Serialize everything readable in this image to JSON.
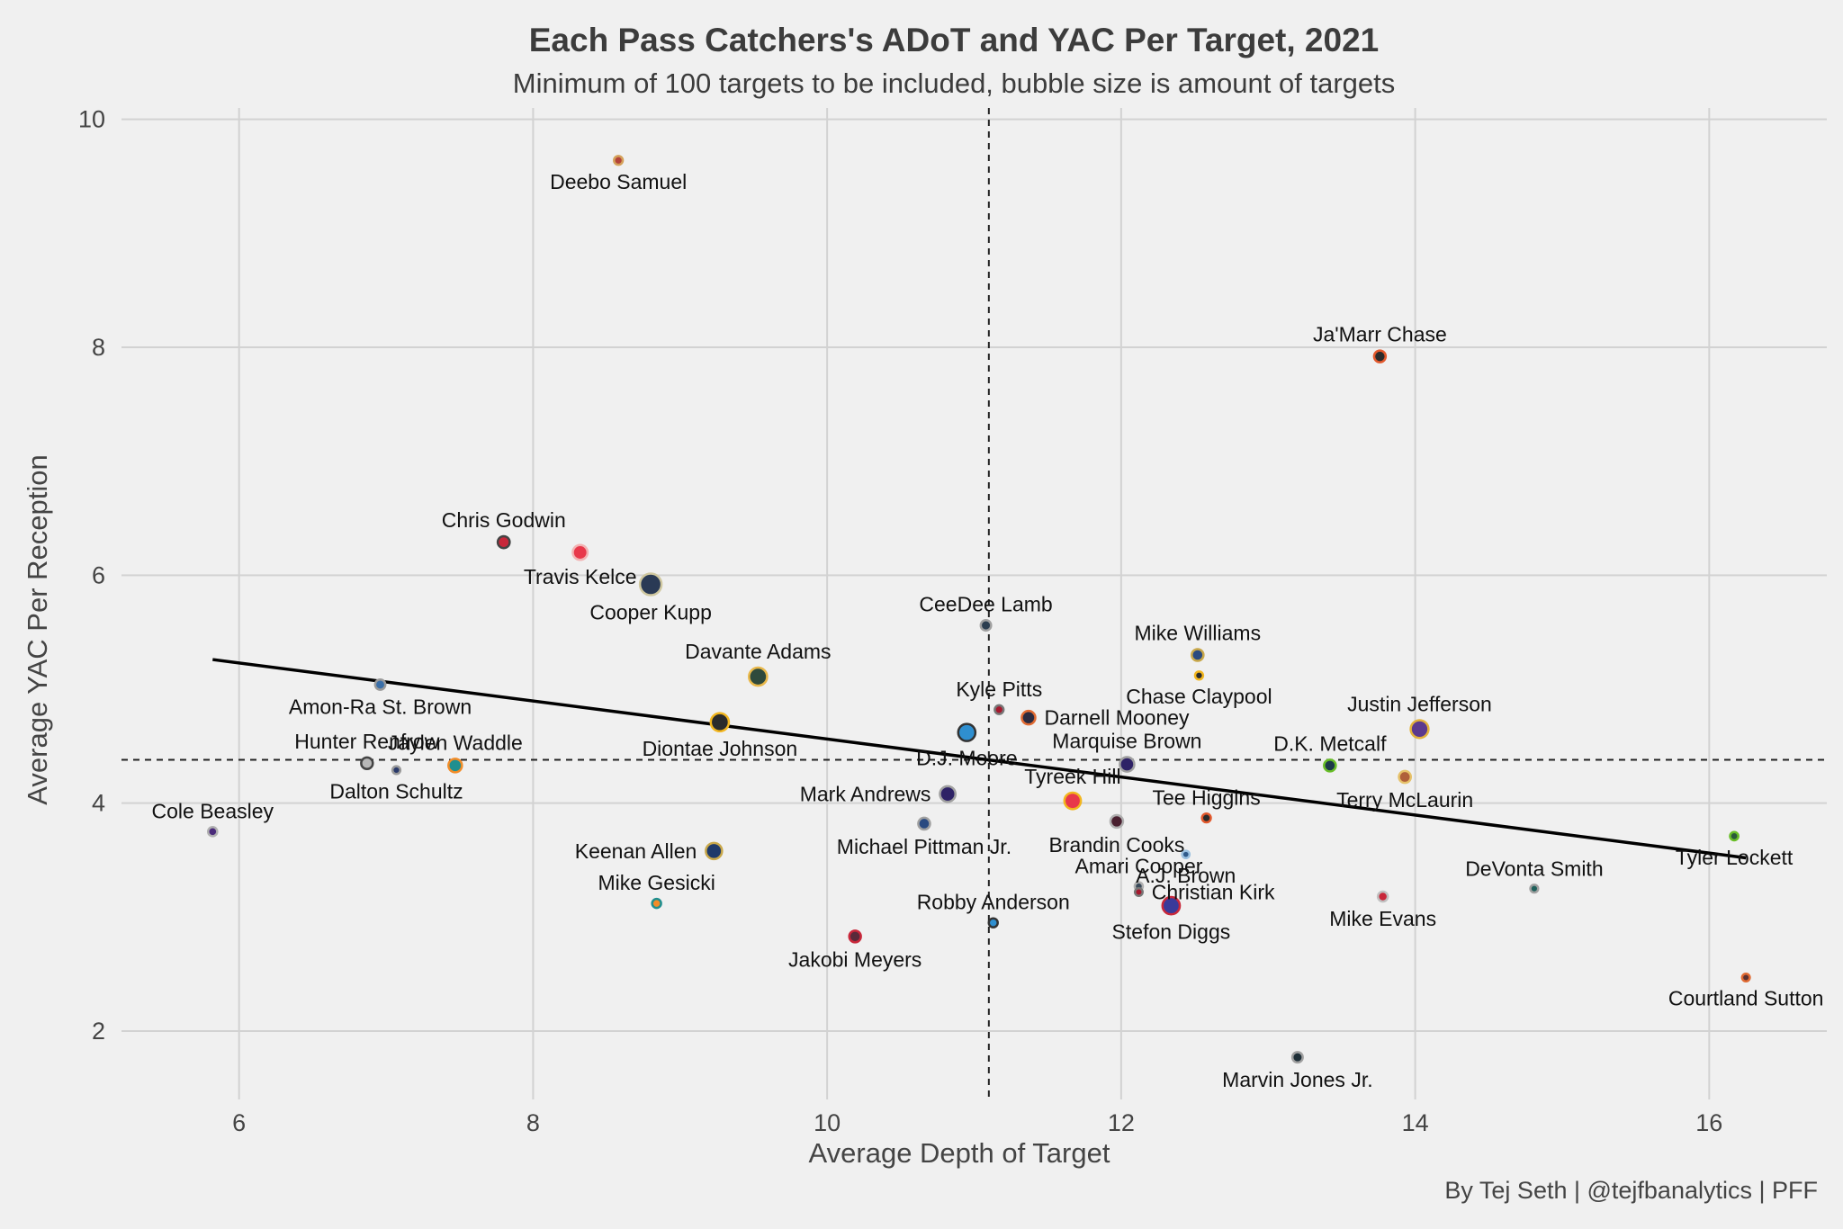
{
  "chart_data": {
    "type": "scatter",
    "title": "Each Pass Catchers's ADoT and YAC Per Target, 2021",
    "subtitle": "Minimum of 100 targets to be included, bubble size is amount of targets",
    "xlabel": "Average Depth of Target",
    "ylabel": "Average YAC Per Reception",
    "xlim": [
      5.2,
      16.8
    ],
    "ylim": [
      1.4,
      10.1
    ],
    "xticks": [
      6,
      8,
      10,
      12,
      14,
      16
    ],
    "yticks": [
      2,
      4,
      6,
      8,
      10
    ],
    "grid": true,
    "reference_lines": {
      "x_mean": 11.1,
      "y_mean": 4.38
    },
    "trend_line": {
      "x": [
        5.82,
        16.25
      ],
      "y": [
        5.26,
        3.52
      ]
    },
    "credit": "By Tej Seth | @tejfbanalytics | PFF",
    "points": [
      {
        "name": "Deebo Samuel",
        "x": 8.58,
        "y": 9.64,
        "targets": 110,
        "fill": "#b3433a",
        "edge": "#d4a15a",
        "label_pos": "below"
      },
      {
        "name": "Ja'Marr Chase",
        "x": 13.76,
        "y": 7.92,
        "targets": 128,
        "fill": "#2b2b2b",
        "edge": "#e2592d",
        "label_pos": "above"
      },
      {
        "name": "Chris Godwin",
        "x": 7.8,
        "y": 6.29,
        "targets": 130,
        "fill": "#c8273a",
        "edge": "#444444",
        "label_pos": "above"
      },
      {
        "name": "Travis Kelce",
        "x": 8.32,
        "y": 6.2,
        "targets": 148,
        "fill": "#e8384a",
        "edge": "#f2b3b3",
        "label_pos": "below"
      },
      {
        "name": "Cooper Kupp",
        "x": 8.8,
        "y": 5.92,
        "targets": 191,
        "fill": "#2a3a55",
        "edge": "#d0c8a0",
        "label_pos": "below"
      },
      {
        "name": "CeeDee Lamb",
        "x": 11.08,
        "y": 5.56,
        "targets": 120,
        "fill": "#2c3e50",
        "edge": "#a0a0a0",
        "label_pos": "above"
      },
      {
        "name": "Mike Williams",
        "x": 12.52,
        "y": 5.3,
        "targets": 129,
        "fill": "#2a4a80",
        "edge": "#c9a84a",
        "label_pos": "above"
      },
      {
        "name": "Chase Claypool",
        "x": 12.53,
        "y": 5.12,
        "targets": 105,
        "fill": "#2b2b2b",
        "edge": "#f2b61f",
        "label_pos": "below"
      },
      {
        "name": "Davante Adams",
        "x": 9.53,
        "y": 5.11,
        "targets": 169,
        "fill": "#2f4a3c",
        "edge": "#e9b84a",
        "label_pos": "above"
      },
      {
        "name": "Amon-Ra St. Brown",
        "x": 6.96,
        "y": 5.04,
        "targets": 119,
        "fill": "#3b6fa8",
        "edge": "#9a9a9a",
        "label_pos": "below"
      },
      {
        "name": "Kyle Pitts",
        "x": 11.17,
        "y": 4.82,
        "targets": 110,
        "fill": "#a6192e",
        "edge": "#777777",
        "label_pos": "above"
      },
      {
        "name": "Darnell Mooney",
        "x": 11.37,
        "y": 4.75,
        "targets": 140,
        "fill": "#2b2b40",
        "edge": "#e06a32",
        "label_pos": "right"
      },
      {
        "name": "Diontae Johnson",
        "x": 9.27,
        "y": 4.71,
        "targets": 169,
        "fill": "#2b2b2b",
        "edge": "#f2b61f",
        "label_pos": "below"
      },
      {
        "name": "Justin Jefferson",
        "x": 14.03,
        "y": 4.65,
        "targets": 167,
        "fill": "#5c3a8e",
        "edge": "#e3b23c",
        "label_pos": "above"
      },
      {
        "name": "D.J. Moore",
        "x": 10.95,
        "y": 4.62,
        "targets": 163,
        "fill": "#2f8fd0",
        "edge": "#333333",
        "label_pos": "below"
      },
      {
        "name": "Hunter Renfrow",
        "x": 6.87,
        "y": 4.35,
        "targets": 128,
        "fill": "#b8b8b8",
        "edge": "#444444",
        "label_pos": "above"
      },
      {
        "name": "Jaylen Waddle",
        "x": 7.47,
        "y": 4.33,
        "targets": 140,
        "fill": "#1f8f8f",
        "edge": "#f28c28",
        "label_pos": "above"
      },
      {
        "name": "Marquise Brown",
        "x": 12.04,
        "y": 4.34,
        "targets": 146,
        "fill": "#2e2266",
        "edge": "#a0a0a0",
        "label_pos": "above"
      },
      {
        "name": "D.K. Metcalf",
        "x": 13.42,
        "y": 4.33,
        "targets": 129,
        "fill": "#1d3a4a",
        "edge": "#69be28",
        "label_pos": "above"
      },
      {
        "name": "Dalton Schultz",
        "x": 7.07,
        "y": 4.29,
        "targets": 104,
        "fill": "#2a3a6a",
        "edge": "#9a9a9a",
        "label_pos": "below"
      },
      {
        "name": "Terry McLaurin",
        "x": 13.93,
        "y": 4.23,
        "targets": 130,
        "fill": "#b0603a",
        "edge": "#e6c26a",
        "label_pos": "below"
      },
      {
        "name": "Mark Andrews",
        "x": 10.82,
        "y": 4.08,
        "targets": 153,
        "fill": "#2e2266",
        "edge": "#a0a0a0",
        "label_pos": "left"
      },
      {
        "name": "Tyreek Hill",
        "x": 11.67,
        "y": 4.02,
        "targets": 159,
        "fill": "#e8384a",
        "edge": "#f2b61f",
        "label_pos": "above"
      },
      {
        "name": "Tee Higgins",
        "x": 12.58,
        "y": 3.87,
        "targets": 110,
        "fill": "#2b2b2b",
        "edge": "#e2592d",
        "label_pos": "above"
      },
      {
        "name": "Brandin Cooks",
        "x": 11.97,
        "y": 3.84,
        "targets": 134,
        "fill": "#4a2030",
        "edge": "#b0b0b0",
        "label_pos": "below"
      },
      {
        "name": "Michael Pittman Jr.",
        "x": 10.66,
        "y": 3.82,
        "targets": 129,
        "fill": "#2a4a80",
        "edge": "#a0a0a0",
        "label_pos": "below"
      },
      {
        "name": "Cole Beasley",
        "x": 5.82,
        "y": 3.75,
        "targets": 112,
        "fill": "#4a2a7a",
        "edge": "#b0b0b0",
        "label_pos": "above"
      },
      {
        "name": "Tyler Lockett",
        "x": 16.17,
        "y": 3.71,
        "targets": 107,
        "fill": "#2a5a3a",
        "edge": "#69be28",
        "label_pos": "below"
      },
      {
        "name": "Keenan Allen",
        "x": 9.23,
        "y": 3.58,
        "targets": 157,
        "fill": "#1f3a6a",
        "edge": "#c9a84a",
        "label_pos": "left"
      },
      {
        "name": "A.J. Brown",
        "x": 12.44,
        "y": 3.55,
        "targets": 101,
        "fill": "#2f5a8a",
        "edge": "#9ac0e0",
        "label_pos": "below"
      },
      {
        "name": "Amari Cooper",
        "x": 12.12,
        "y": 3.27,
        "targets": 106,
        "fill": "#3a4a5a",
        "edge": "#b0b0b0",
        "label_pos": "above"
      },
      {
        "name": "DeVonta Smith",
        "x": 14.81,
        "y": 3.25,
        "targets": 104,
        "fill": "#1f5f5a",
        "edge": "#a0a0a0",
        "label_pos": "above"
      },
      {
        "name": "Christian Kirk",
        "x": 12.12,
        "y": 3.22,
        "targets": 103,
        "fill": "#a6192e",
        "edge": "#777777",
        "label_pos": "right"
      },
      {
        "name": "Mike Evans",
        "x": 13.78,
        "y": 3.18,
        "targets": 117,
        "fill": "#c8273a",
        "edge": "#c0c0c0",
        "label_pos": "below"
      },
      {
        "name": "Mike Gesicki",
        "x": 8.84,
        "y": 3.12,
        "targets": 111,
        "fill": "#f28c28",
        "edge": "#1f8f8f",
        "label_pos": "above"
      },
      {
        "name": "Stefon Diggs",
        "x": 12.34,
        "y": 3.1,
        "targets": 164,
        "fill": "#3a3a9a",
        "edge": "#c8273a",
        "label_pos": "below"
      },
      {
        "name": "Robby Anderson",
        "x": 11.13,
        "y": 2.95,
        "targets": 111,
        "fill": "#2f8fd0",
        "edge": "#333333",
        "label_pos": "above"
      },
      {
        "name": "Jakobi Meyers",
        "x": 10.19,
        "y": 2.83,
        "targets": 128,
        "fill": "#5a2a3a",
        "edge": "#c8273a",
        "label_pos": "below"
      },
      {
        "name": "Courtland Sutton",
        "x": 16.25,
        "y": 2.47,
        "targets": 103,
        "fill": "#5a3030",
        "edge": "#e06a32",
        "label_pos": "below"
      },
      {
        "name": "Marvin Jones Jr.",
        "x": 13.2,
        "y": 1.77,
        "targets": 120,
        "fill": "#1f2f38",
        "edge": "#a0a0a0",
        "label_pos": "below"
      }
    ]
  }
}
